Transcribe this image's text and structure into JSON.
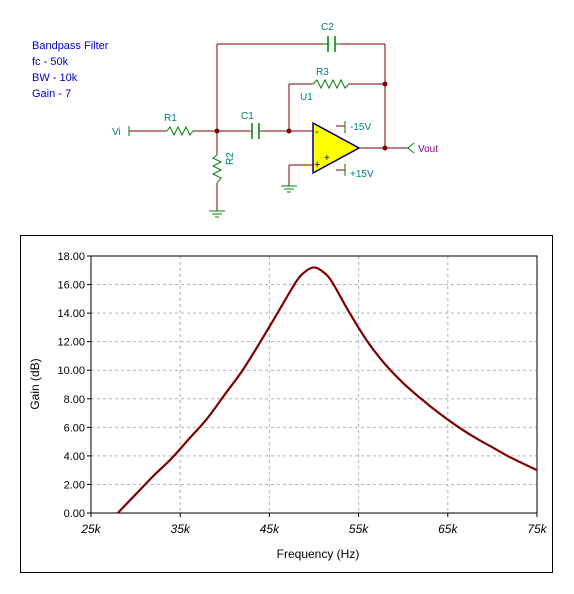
{
  "notes": {
    "line1": "Bandpass Filter",
    "line2": "fc - 50k",
    "line3": "BW - 10k",
    "line4": "Gain - 7"
  },
  "schematic": {
    "components": {
      "r1": "R1",
      "r2": "R2",
      "r3": "R3",
      "c1": "C1",
      "c2": "C2",
      "u1": "U1"
    },
    "ports": {
      "input": "Vi",
      "output": "Vout"
    },
    "supplies": {
      "negative": "-15V",
      "positive": "+15V"
    },
    "opamp_pins": {
      "inverting": "-",
      "noninverting": "+",
      "supply_pos": "+"
    },
    "colors": {
      "wire": "#800000",
      "component": "#008000",
      "label": "#008080",
      "opamp_fill": "#ffff00",
      "opamp_outline": "#000080",
      "output_label": "#800080",
      "note_text": "#0000c8"
    }
  },
  "chart_data": {
    "type": "line",
    "xlabel": "Frequency (Hz)",
    "ylabel": "Gain (dB)",
    "xlim": [
      25000,
      75000
    ],
    "ylim": [
      0,
      18
    ],
    "x_ticks": [
      25000,
      35000,
      45000,
      55000,
      65000,
      75000
    ],
    "x_tick_labels": [
      "25k",
      "35k",
      "45k",
      "55k",
      "65k",
      "75k"
    ],
    "y_ticks": [
      0,
      2,
      4,
      6,
      8,
      10,
      12,
      14,
      16,
      18
    ],
    "y_tick_labels": [
      "0.00",
      "2.00",
      "4.00",
      "6.00",
      "8.00",
      "10.00",
      "12.00",
      "14.00",
      "16.00",
      "18.00"
    ],
    "grid": true,
    "line_color": "#800000",
    "series": [
      {
        "x": [
          28000,
          30000,
          32000,
          34000,
          36000,
          38000,
          40000,
          42000,
          44000,
          46000,
          48000,
          49000,
          50000,
          51000,
          52000,
          54000,
          56000,
          58000,
          60000,
          62000,
          64000,
          66000,
          68000,
          70000,
          72000,
          75000
        ],
        "y": [
          0.0,
          1.3,
          2.6,
          3.8,
          5.2,
          6.6,
          8.3,
          10.0,
          12.0,
          14.1,
          16.2,
          16.9,
          17.2,
          16.9,
          16.2,
          14.0,
          12.0,
          10.4,
          9.1,
          8.0,
          7.0,
          6.1,
          5.3,
          4.6,
          3.9,
          3.0
        ]
      }
    ]
  }
}
